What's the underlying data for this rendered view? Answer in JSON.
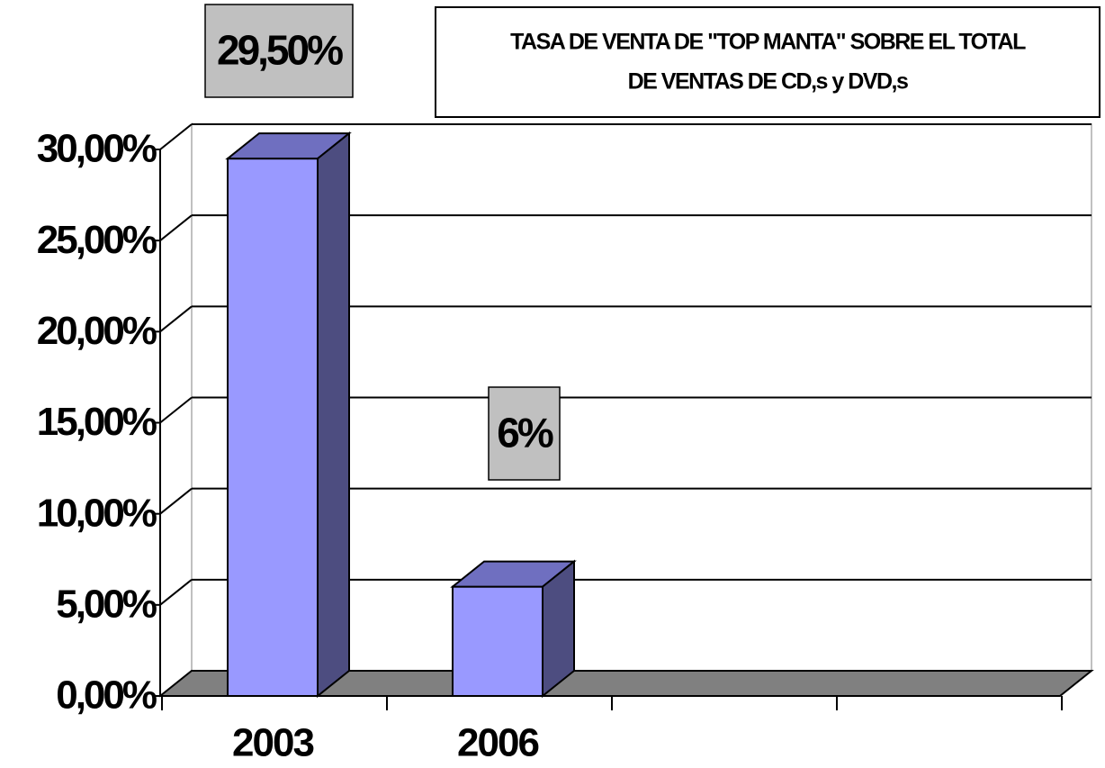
{
  "chart_data": {
    "type": "bar3d",
    "title": [
      "TASA DE VENTA DE \"TOP MANTA\" SOBRE EL TOTAL",
      "DE VENTAS DE CD,s y DVD,s"
    ],
    "categories": [
      "2003",
      "2006",
      null,
      null
    ],
    "values": [
      29.5,
      6,
      null,
      null
    ],
    "value_labels": [
      "29,50%",
      "6%",
      null,
      null
    ],
    "color": "#9999ff",
    "ylim": [
      0,
      30
    ],
    "yticks": [
      {
        "value": 0,
        "label": "0,00%"
      },
      {
        "value": 5,
        "label": "5,00%"
      },
      {
        "value": 10,
        "label": "10,00%"
      },
      {
        "value": 15,
        "label": "15,00%"
      },
      {
        "value": 20,
        "label": "20,00%"
      },
      {
        "value": 25,
        "label": "25,00%"
      },
      {
        "value": 30,
        "label": "30,00%"
      }
    ],
    "grid": true
  }
}
